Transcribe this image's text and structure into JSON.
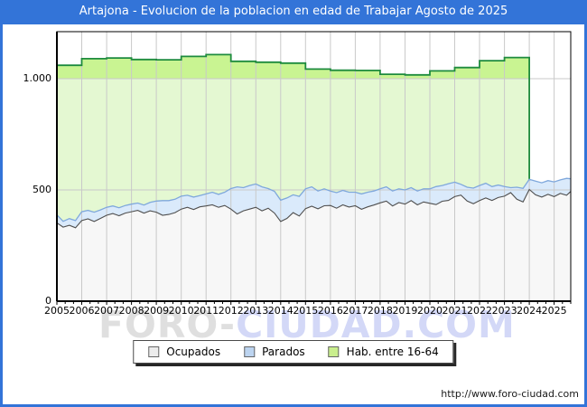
{
  "title": "Artajona - Evolucion de la poblacion en edad de Trabajar Agosto de 2025",
  "footer_url": "http://www.foro-ciudad.com",
  "watermark": {
    "part_gray": "FORO-",
    "part_blue": "CIUDAD.COM"
  },
  "legend": [
    {
      "label": "Ocupados",
      "swatch": "#ececec"
    },
    {
      "label": "Parados",
      "swatch": "#bcd4f0"
    },
    {
      "label": "Hab. entre 16-64",
      "swatch": "#c9ee8d"
    }
  ],
  "colors": {
    "frame_blue": "#3374d8",
    "title_text": "#ffffff",
    "hab_fill_pale": "#e4f8d2",
    "hab_fill_band": "#c9f492",
    "hab_stroke": "#1e8b3e",
    "parados_fill": "#daeafb",
    "parados_stroke": "#7fa8dc",
    "ocupados_fill": "#f7f7f7",
    "ocupados_stroke": "#4f4f4f",
    "gridline": "#c9c9c9",
    "axis": "#000000"
  },
  "chart_data": {
    "type": "area",
    "title": "Artajona - Evolucion de la poblacion en edad de Trabajar Agosto de 2025",
    "xlabel": "",
    "ylabel": "",
    "grid": true,
    "legend_position": "bottom",
    "x_axis": {
      "labels": [
        "2005",
        "2006",
        "2007",
        "2008",
        "2009",
        "2010",
        "2011",
        "2012",
        "2013",
        "2014",
        "2015",
        "2016",
        "2017",
        "2018",
        "2019",
        "2020",
        "2021",
        "2022",
        "2023",
        "2024",
        "2025"
      ],
      "range": [
        2005,
        2025.6667
      ]
    },
    "y_axis": {
      "ticks": [
        0,
        500,
        1000
      ],
      "tick_labels": [
        "0",
        "500",
        "1.000"
      ],
      "range": [
        0,
        1211
      ]
    },
    "series": [
      {
        "name": "Hab. entre 16-64",
        "style": "step-yearly",
        "years": [
          2005,
          2006,
          2007,
          2008,
          2009,
          2010,
          2011,
          2012,
          2013,
          2014,
          2015,
          2016,
          2017,
          2018,
          2019,
          2020,
          2021,
          2022,
          2023
        ],
        "values": [
          1060,
          1090,
          1093,
          1086,
          1085,
          1100,
          1108,
          1078,
          1074,
          1070,
          1043,
          1038,
          1037,
          1020,
          1017,
          1035,
          1050,
          1081,
          1095
        ],
        "end_x": 2024,
        "end_drop_value": 545
      },
      {
        "name": "Ocupados",
        "style": "area",
        "x_start": 2005,
        "x_step": 0.25,
        "values": [
          352,
          333,
          341,
          330,
          362,
          370,
          358,
          372,
          386,
          394,
          384,
          396,
          402,
          408,
          396,
          406,
          400,
          386,
          390,
          398,
          414,
          422,
          412,
          424,
          428,
          433,
          422,
          430,
          414,
          392,
          406,
          414,
          422,
          406,
          418,
          396,
          358,
          372,
          398,
          383,
          416,
          427,
          415,
          429,
          430,
          418,
          433,
          423,
          429,
          413,
          424,
          432,
          442,
          450,
          428,
          443,
          436,
          452,
          433,
          446,
          440,
          434,
          449,
          453,
          470,
          477,
          450,
          438,
          452,
          464,
          453,
          466,
          472,
          488,
          458,
          446,
          502,
          478,
          468,
          480,
          470,
          484,
          476,
          493
        ]
      },
      {
        "name": "Parados",
        "style": "area",
        "stacked_on": "Ocupados",
        "x_start": 2005,
        "x_step": 0.25,
        "values": [
          36,
          26,
          30,
          32,
          40,
          38,
          42,
          38,
          36,
          34,
          36,
          34,
          34,
          33,
          36,
          38,
          50,
          66,
          62,
          60,
          58,
          54,
          56,
          51,
          54,
          57,
          58,
          60,
          92,
          122,
          104,
          106,
          105,
          108,
          88,
          98,
          96,
          92,
          80,
          88,
          89,
          87,
          80,
          76,
          65,
          70,
          65,
          67,
          61,
          69,
          66,
          63,
          63,
          64,
          67,
          62,
          64,
          58,
          62,
          59,
          65,
          81,
          71,
          75,
          65,
          48,
          62,
          70,
          68,
          66,
          62,
          56,
          43,
          22,
          54,
          61,
          46,
          62,
          64,
          62,
          66,
          61,
          76,
          57
        ]
      }
    ]
  }
}
